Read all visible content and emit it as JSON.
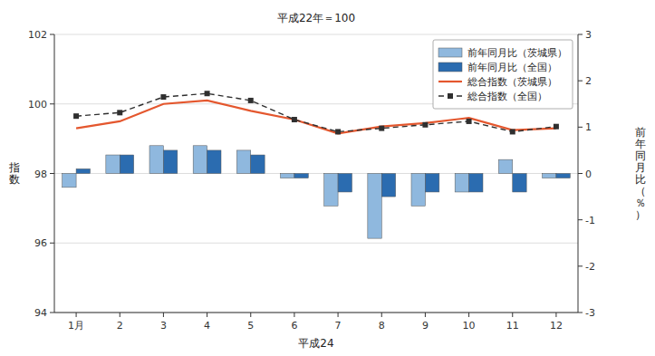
{
  "chart_data": {
    "type": "bar",
    "title": "平成22年＝100",
    "x_label": "平成24",
    "y_label": "指\n数",
    "y2_label": "前\n年\n同\n月\n比\n（\n％\n）",
    "categories": [
      "1月",
      "2",
      "3",
      "4",
      "5",
      "6",
      "7",
      "8",
      "9",
      "10",
      "11",
      "12"
    ],
    "series": [
      {
        "name": "前年同月比（茨城県）",
        "type": "bar",
        "axis": "y2",
        "color": "#8fb8de",
        "values": [
          -0.3,
          0.4,
          0.6,
          0.6,
          0.5,
          -0.1,
          -0.7,
          -1.4,
          -0.7,
          -0.4,
          0.3,
          -0.1
        ]
      },
      {
        "name": "前年同月比（全国）",
        "type": "bar",
        "axis": "y2",
        "color": "#2b6cb0",
        "values": [
          0.1,
          0.4,
          0.5,
          0.5,
          0.4,
          -0.1,
          -0.4,
          -0.5,
          -0.4,
          -0.4,
          -0.4,
          -0.1
        ]
      },
      {
        "name": "総合指数（茨城県）",
        "type": "line",
        "color": "#e4572e",
        "line_style": "solid",
        "values": [
          99.3,
          99.5,
          100.0,
          100.1,
          99.8,
          99.55,
          99.15,
          99.35,
          99.45,
          99.6,
          99.25,
          99.3
        ]
      },
      {
        "name": "総合指数（全国）",
        "type": "line",
        "color": "#2f2f2f",
        "line_style": "dashed",
        "marker": "square",
        "values": [
          99.65,
          99.75,
          100.2,
          100.3,
          100.1,
          99.55,
          99.2,
          99.3,
          99.4,
          99.5,
          99.2,
          99.35
        ]
      }
    ],
    "ylim": [
      94,
      102
    ],
    "yticks": [
      94,
      96,
      98,
      100,
      102
    ],
    "y2lim": [
      -3,
      3
    ],
    "y2ticks": [
      -3,
      -2,
      -1,
      0,
      1,
      2,
      3
    ],
    "grid": true,
    "legend": "upper right"
  }
}
